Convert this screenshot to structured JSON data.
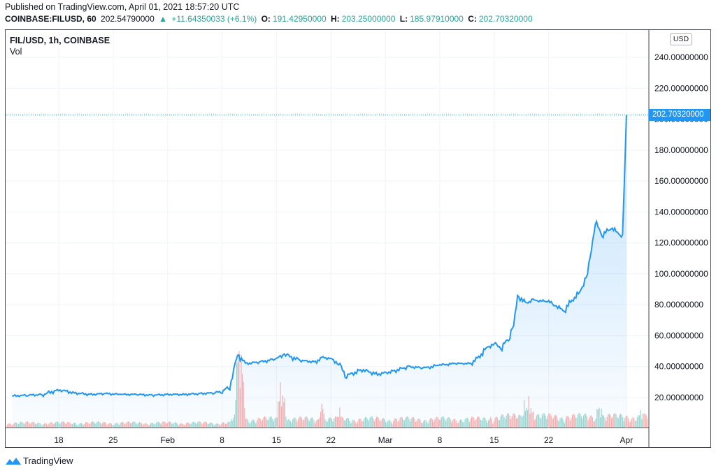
{
  "header": {
    "published": "Published on TradingView.com, April 01, 2021 18:57:20 UTC",
    "symbol": "COINBASE:FILUSD, 60",
    "last": "202.54790000",
    "change": "+11.64350033 (+6.1%)",
    "o_label": "O:",
    "o": "191.42950000",
    "h_label": "H:",
    "h": "203.25000000",
    "l_label": "L:",
    "l": "185.97910000",
    "c_label": "C:",
    "c": "202.70320000"
  },
  "pane": {
    "symbol_title": "FIL/USD, 1h, COINBASE",
    "volume_label": "Vol",
    "currency": "USD"
  },
  "current_price_label": "202.70320000",
  "footer": {
    "brand": "TradingView"
  },
  "colors": {
    "line": "#2196f3",
    "vol_up": "#26a69a",
    "vol_down": "#ef5350",
    "grid": "#f0f3fa"
  },
  "chart_data": {
    "type": "area",
    "title": "FIL/USD, 1h, COINBASE",
    "xlabel": "",
    "ylabel": "",
    "ylim": [
      0,
      250
    ],
    "x_ticks": [
      "18",
      "25",
      "Feb",
      "8",
      "15",
      "22",
      "Mar",
      "8",
      "15",
      "22",
      "Apr"
    ],
    "y_ticks": [
      "20.00000000",
      "40.00000000",
      "60.00000000",
      "80.00000000",
      "100.00000000",
      "120.00000000",
      "140.00000000",
      "160.00000000",
      "180.00000000",
      "200.00000000",
      "220.00000000",
      "240.00000000"
    ],
    "current_price": 202.7032,
    "series": [
      {
        "x": [
          "2021-01-12",
          "2021-01-14",
          "2021-01-16",
          "2021-01-18",
          "2021-01-20",
          "2021-01-22",
          "2021-01-24",
          "2021-01-26",
          "2021-01-28",
          "2021-01-30",
          "2021-02-01",
          "2021-02-03",
          "2021-02-05",
          "2021-02-07",
          "2021-02-08",
          "2021-02-09",
          "2021-02-10",
          "2021-02-11",
          "2021-02-13",
          "2021-02-15",
          "2021-02-16",
          "2021-02-18",
          "2021-02-20",
          "2021-02-21",
          "2021-02-22",
          "2021-02-23",
          "2021-02-24",
          "2021-02-26",
          "2021-02-28",
          "2021-03-02",
          "2021-03-04",
          "2021-03-06",
          "2021-03-08",
          "2021-03-10",
          "2021-03-12",
          "2021-03-13",
          "2021-03-14",
          "2021-03-15",
          "2021-03-16",
          "2021-03-17",
          "2021-03-17T12:00",
          "2021-03-18",
          "2021-03-19",
          "2021-03-20",
          "2021-03-22",
          "2021-03-23",
          "2021-03-24",
          "2021-03-25",
          "2021-03-26",
          "2021-03-27",
          "2021-03-28",
          "2021-03-29",
          "2021-03-30",
          "2021-03-31",
          "2021-03-31T12:00",
          "2021-04-01"
        ],
        "y": [
          21,
          21.5,
          22,
          25,
          23,
          22,
          22.5,
          22,
          22,
          21.5,
          22,
          22,
          22.5,
          23,
          24,
          27,
          48,
          42,
          43,
          45,
          48,
          44,
          43,
          46,
          45,
          42,
          34,
          38,
          35,
          37,
          40,
          39,
          41,
          42,
          42,
          46,
          52,
          55,
          52,
          60,
          68,
          86,
          81,
          83,
          82,
          79,
          76,
          83,
          88,
          100,
          133,
          125,
          130,
          126,
          124,
          202.7
        ]
      }
    ],
    "volume": {
      "pattern": "alternating up/down bars, spikes near Feb 8-10, mid-Feb, Mar 17-22, Mar 26-31"
    }
  }
}
